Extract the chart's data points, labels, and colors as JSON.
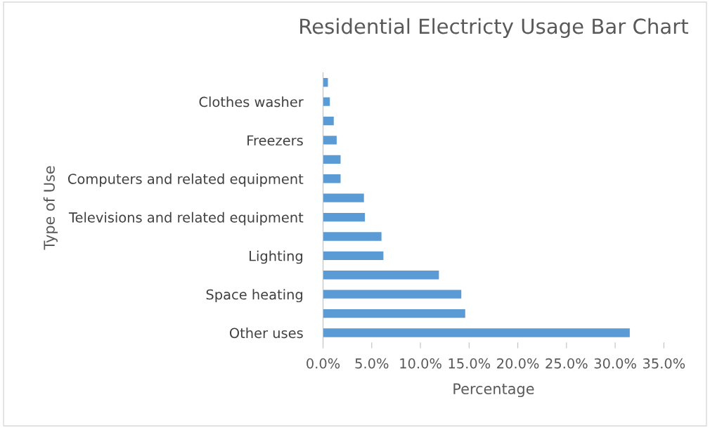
{
  "chart_data": {
    "type": "bar",
    "orientation": "horizontal",
    "title": "Residential Electricty Usage Bar Chart",
    "xlabel": "Percentage",
    "ylabel": "Type of Use",
    "categories": [
      null,
      "Clothes washer",
      null,
      "Freezers",
      null,
      "Computers and related equipment",
      null,
      "Televisions and related equipment",
      null,
      "Lighting",
      null,
      "Space heating",
      null,
      "Other uses"
    ],
    "values": [
      0.5,
      0.7,
      1.1,
      1.4,
      1.8,
      1.8,
      4.2,
      4.3,
      6.0,
      6.2,
      11.9,
      14.2,
      14.6,
      31.5
    ],
    "color": "#5b9bd5",
    "xlim": [
      0,
      35
    ],
    "xticks": [
      {
        "value": 0,
        "label": "0.0%"
      },
      {
        "value": 5,
        "label": "5.0%"
      },
      {
        "value": 10,
        "label": "10.0%"
      },
      {
        "value": 15,
        "label": "15.0%"
      },
      {
        "value": 20,
        "label": "20.0%"
      },
      {
        "value": 25,
        "label": "25.0%"
      },
      {
        "value": 30,
        "label": "30.0%"
      },
      {
        "value": 35,
        "label": "35.0%"
      }
    ],
    "grid": false
  }
}
